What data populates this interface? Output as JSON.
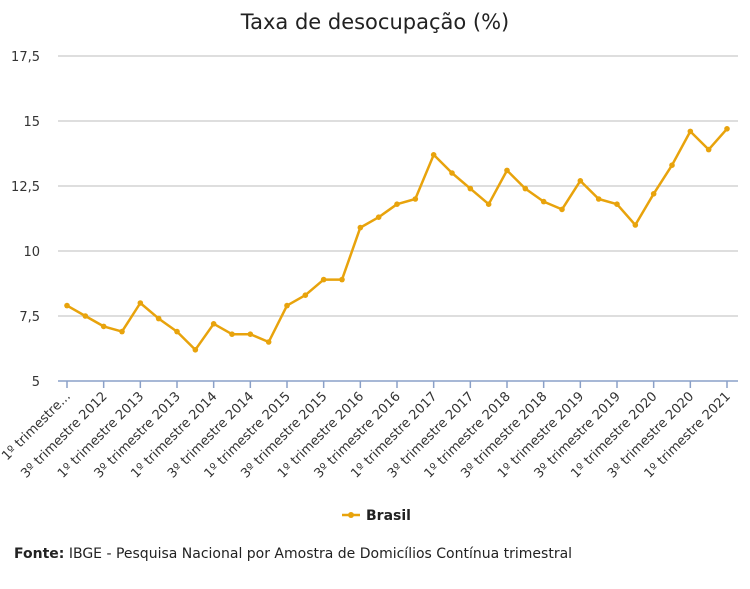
{
  "chart_data": {
    "type": "line",
    "title": "Taxa de desocupação (%)",
    "xlabel": "",
    "ylabel": "",
    "ylim": [
      5,
      17.5
    ],
    "yticks": [
      5,
      7.5,
      10,
      12.5,
      15,
      17.5
    ],
    "ytick_labels": [
      "5",
      "7,5",
      "10",
      "12,5",
      "15",
      "17,5"
    ],
    "x_tick_labels": [
      "1º trimestre...",
      "3º trimestre 2012",
      "1º trimestre 2013",
      "3º trimestre 2013",
      "1º trimestre 2014",
      "3º trimestre 2014",
      "1º trimestre 2015",
      "3º trimestre 2015",
      "1º trimestre 2016",
      "3º trimestre 2016",
      "1º trimestre 2017",
      "3º trimestre 2017",
      "1º trimestre 2018",
      "3º trimestre 2018",
      "1º trimestre 2019",
      "3º trimestre 2019",
      "1º trimestre 2020",
      "3º trimestre 2020",
      "1º trimestre 2021"
    ],
    "grid": true,
    "legend_position": "bottom",
    "series": [
      {
        "name": "Brasil",
        "color": "#e8a30c",
        "values": [
          7.9,
          7.5,
          7.1,
          6.9,
          8.0,
          7.4,
          6.9,
          6.2,
          7.2,
          6.8,
          6.8,
          6.5,
          7.9,
          8.3,
          8.9,
          8.9,
          10.9,
          11.3,
          11.8,
          12.0,
          13.7,
          13.0,
          12.4,
          11.8,
          13.1,
          12.4,
          11.9,
          11.6,
          12.7,
          12.0,
          11.8,
          11.0,
          12.2,
          13.3,
          14.6,
          13.9,
          14.7
        ]
      }
    ]
  },
  "source": {
    "label": "Fonte:",
    "text": " IBGE - Pesquisa Nacional por Amostra de Domicílios Contínua trimestral"
  }
}
